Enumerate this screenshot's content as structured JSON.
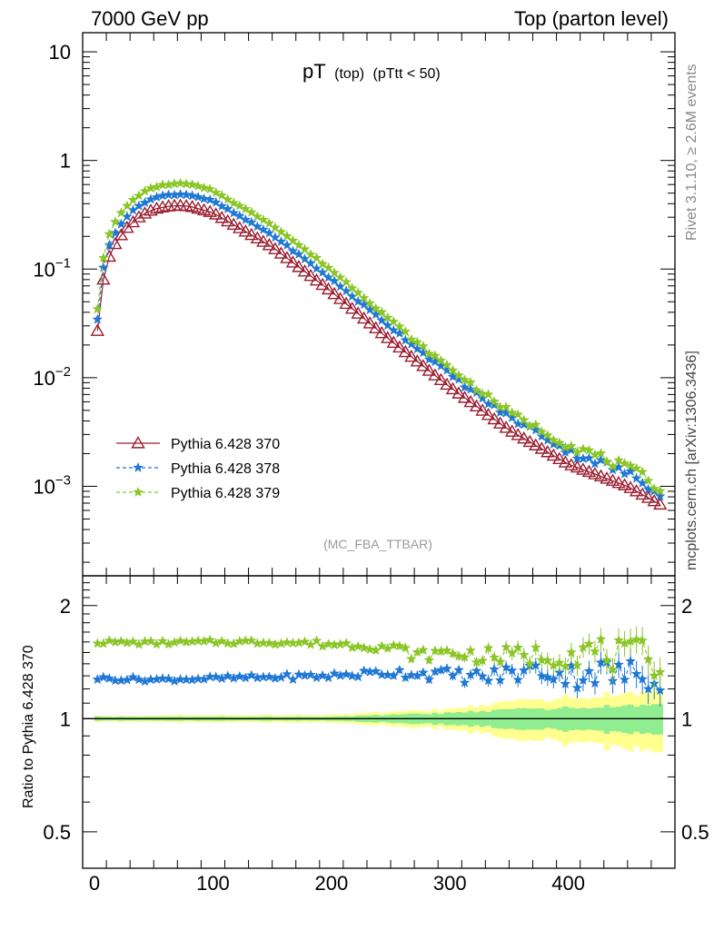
{
  "header": {
    "energy_label": "7000 GeV pp",
    "process_label": "Top (parton level)"
  },
  "plot_title": {
    "main": "pT",
    "sub": "(top)",
    "cut": "(pTtt < 50)"
  },
  "analysis_tag": "(MC_FBA_TTBAR)",
  "side_text": {
    "rivet": "Rivet 3.1.10, ≥ 2.6M events",
    "site": "mcplots.cern.ch [arXiv:1306.3436]"
  },
  "ratio_ylabel": "Ratio to Pythia 6.428 370",
  "upper_ticks": [
    {
      "value": 10,
      "base": "10",
      "exp": ""
    },
    {
      "value": 1,
      "base": "1",
      "exp": ""
    },
    {
      "value": 0.1,
      "base": "10",
      "exp": "−1"
    },
    {
      "value": 0.01,
      "base": "10",
      "exp": "−2"
    },
    {
      "value": 0.001,
      "base": "10",
      "exp": "−3"
    }
  ],
  "ratio_ticks": [
    {
      "value": 2,
      "label": "2"
    },
    {
      "value": 1,
      "label": "1"
    },
    {
      "value": 0.5,
      "label": "0.5"
    }
  ],
  "x_ticks": [
    {
      "value": 0,
      "label": "0"
    },
    {
      "value": 100,
      "label": "100"
    },
    {
      "value": 200,
      "label": "200"
    },
    {
      "value": 300,
      "label": "300"
    },
    {
      "value": 400,
      "label": "400"
    }
  ],
  "chart_data": {
    "type": "line",
    "x_range": [
      -10,
      490
    ],
    "y_log": true,
    "ylim": [
      0.00015,
      15
    ],
    "ratio_ylim": [
      0.4,
      2.4
    ],
    "legend_position": "bottom-left",
    "bins": {
      "start": 0,
      "width": 5,
      "count": 96
    },
    "profile": {
      "comment_free": true,
      "knots_x": [
        2.5,
        7.5,
        12.5,
        17.5,
        22.5,
        27.5,
        32.5,
        37.5,
        42.5,
        47.5,
        52.5,
        57.5,
        62.5,
        67.5,
        72.5,
        77.5,
        82.5,
        100,
        150,
        200,
        250,
        300,
        350,
        400,
        450,
        477.5
      ],
      "knots_y": [
        0.027,
        0.08,
        0.13,
        0.17,
        0.205,
        0.24,
        0.27,
        0.3,
        0.325,
        0.345,
        0.36,
        0.37,
        0.378,
        0.382,
        0.383,
        0.38,
        0.373,
        0.33,
        0.16,
        0.062,
        0.022,
        0.0082,
        0.0033,
        0.0016,
        0.001,
        0.00068
      ]
    },
    "series": [
      {
        "name": "Pythia 6.428 370",
        "color": "#9b1c2e",
        "marker": "open-triangle",
        "line": "solid",
        "ratio_knots_x": [
          2.5,
          477.5
        ],
        "ratio_knots_y": [
          1.0,
          1.0
        ]
      },
      {
        "name": "Pythia 6.428 378",
        "color": "#1f78d4",
        "marker": "star",
        "line": "dashed",
        "ratio_knots_x": [
          2.5,
          50,
          100,
          150,
          200,
          250,
          300,
          330,
          350,
          380,
          400,
          420,
          450,
          477.5
        ],
        "ratio_knots_y": [
          1.28,
          1.27,
          1.28,
          1.29,
          1.3,
          1.33,
          1.31,
          1.29,
          1.32,
          1.35,
          1.3,
          1.34,
          1.3,
          1.35
        ]
      },
      {
        "name": "Pythia 6.428 379",
        "color": "#8ac626",
        "marker": "star",
        "line": "dashed",
        "ratio_knots_x": [
          2.5,
          50,
          100,
          150,
          200,
          230,
          260,
          270,
          300,
          330,
          350,
          380,
          400,
          420,
          450,
          477.5
        ],
        "ratio_knots_y": [
          1.6,
          1.59,
          1.6,
          1.6,
          1.58,
          1.57,
          1.53,
          1.47,
          1.5,
          1.47,
          1.47,
          1.48,
          1.5,
          1.52,
          1.45,
          1.48
        ]
      }
    ],
    "mc_band": {
      "inner_color": "#90ee90",
      "outer_color": "#ffff90",
      "inner_halfwidth_knots": [
        [
          0,
          0.01
        ],
        [
          200,
          0.01
        ],
        [
          300,
          0.03
        ],
        [
          400,
          0.06
        ],
        [
          480,
          0.08
        ]
      ],
      "outer_halfwidth_knots": [
        [
          0,
          0.015
        ],
        [
          200,
          0.02
        ],
        [
          300,
          0.05
        ],
        [
          400,
          0.12
        ],
        [
          480,
          0.16
        ]
      ]
    }
  }
}
